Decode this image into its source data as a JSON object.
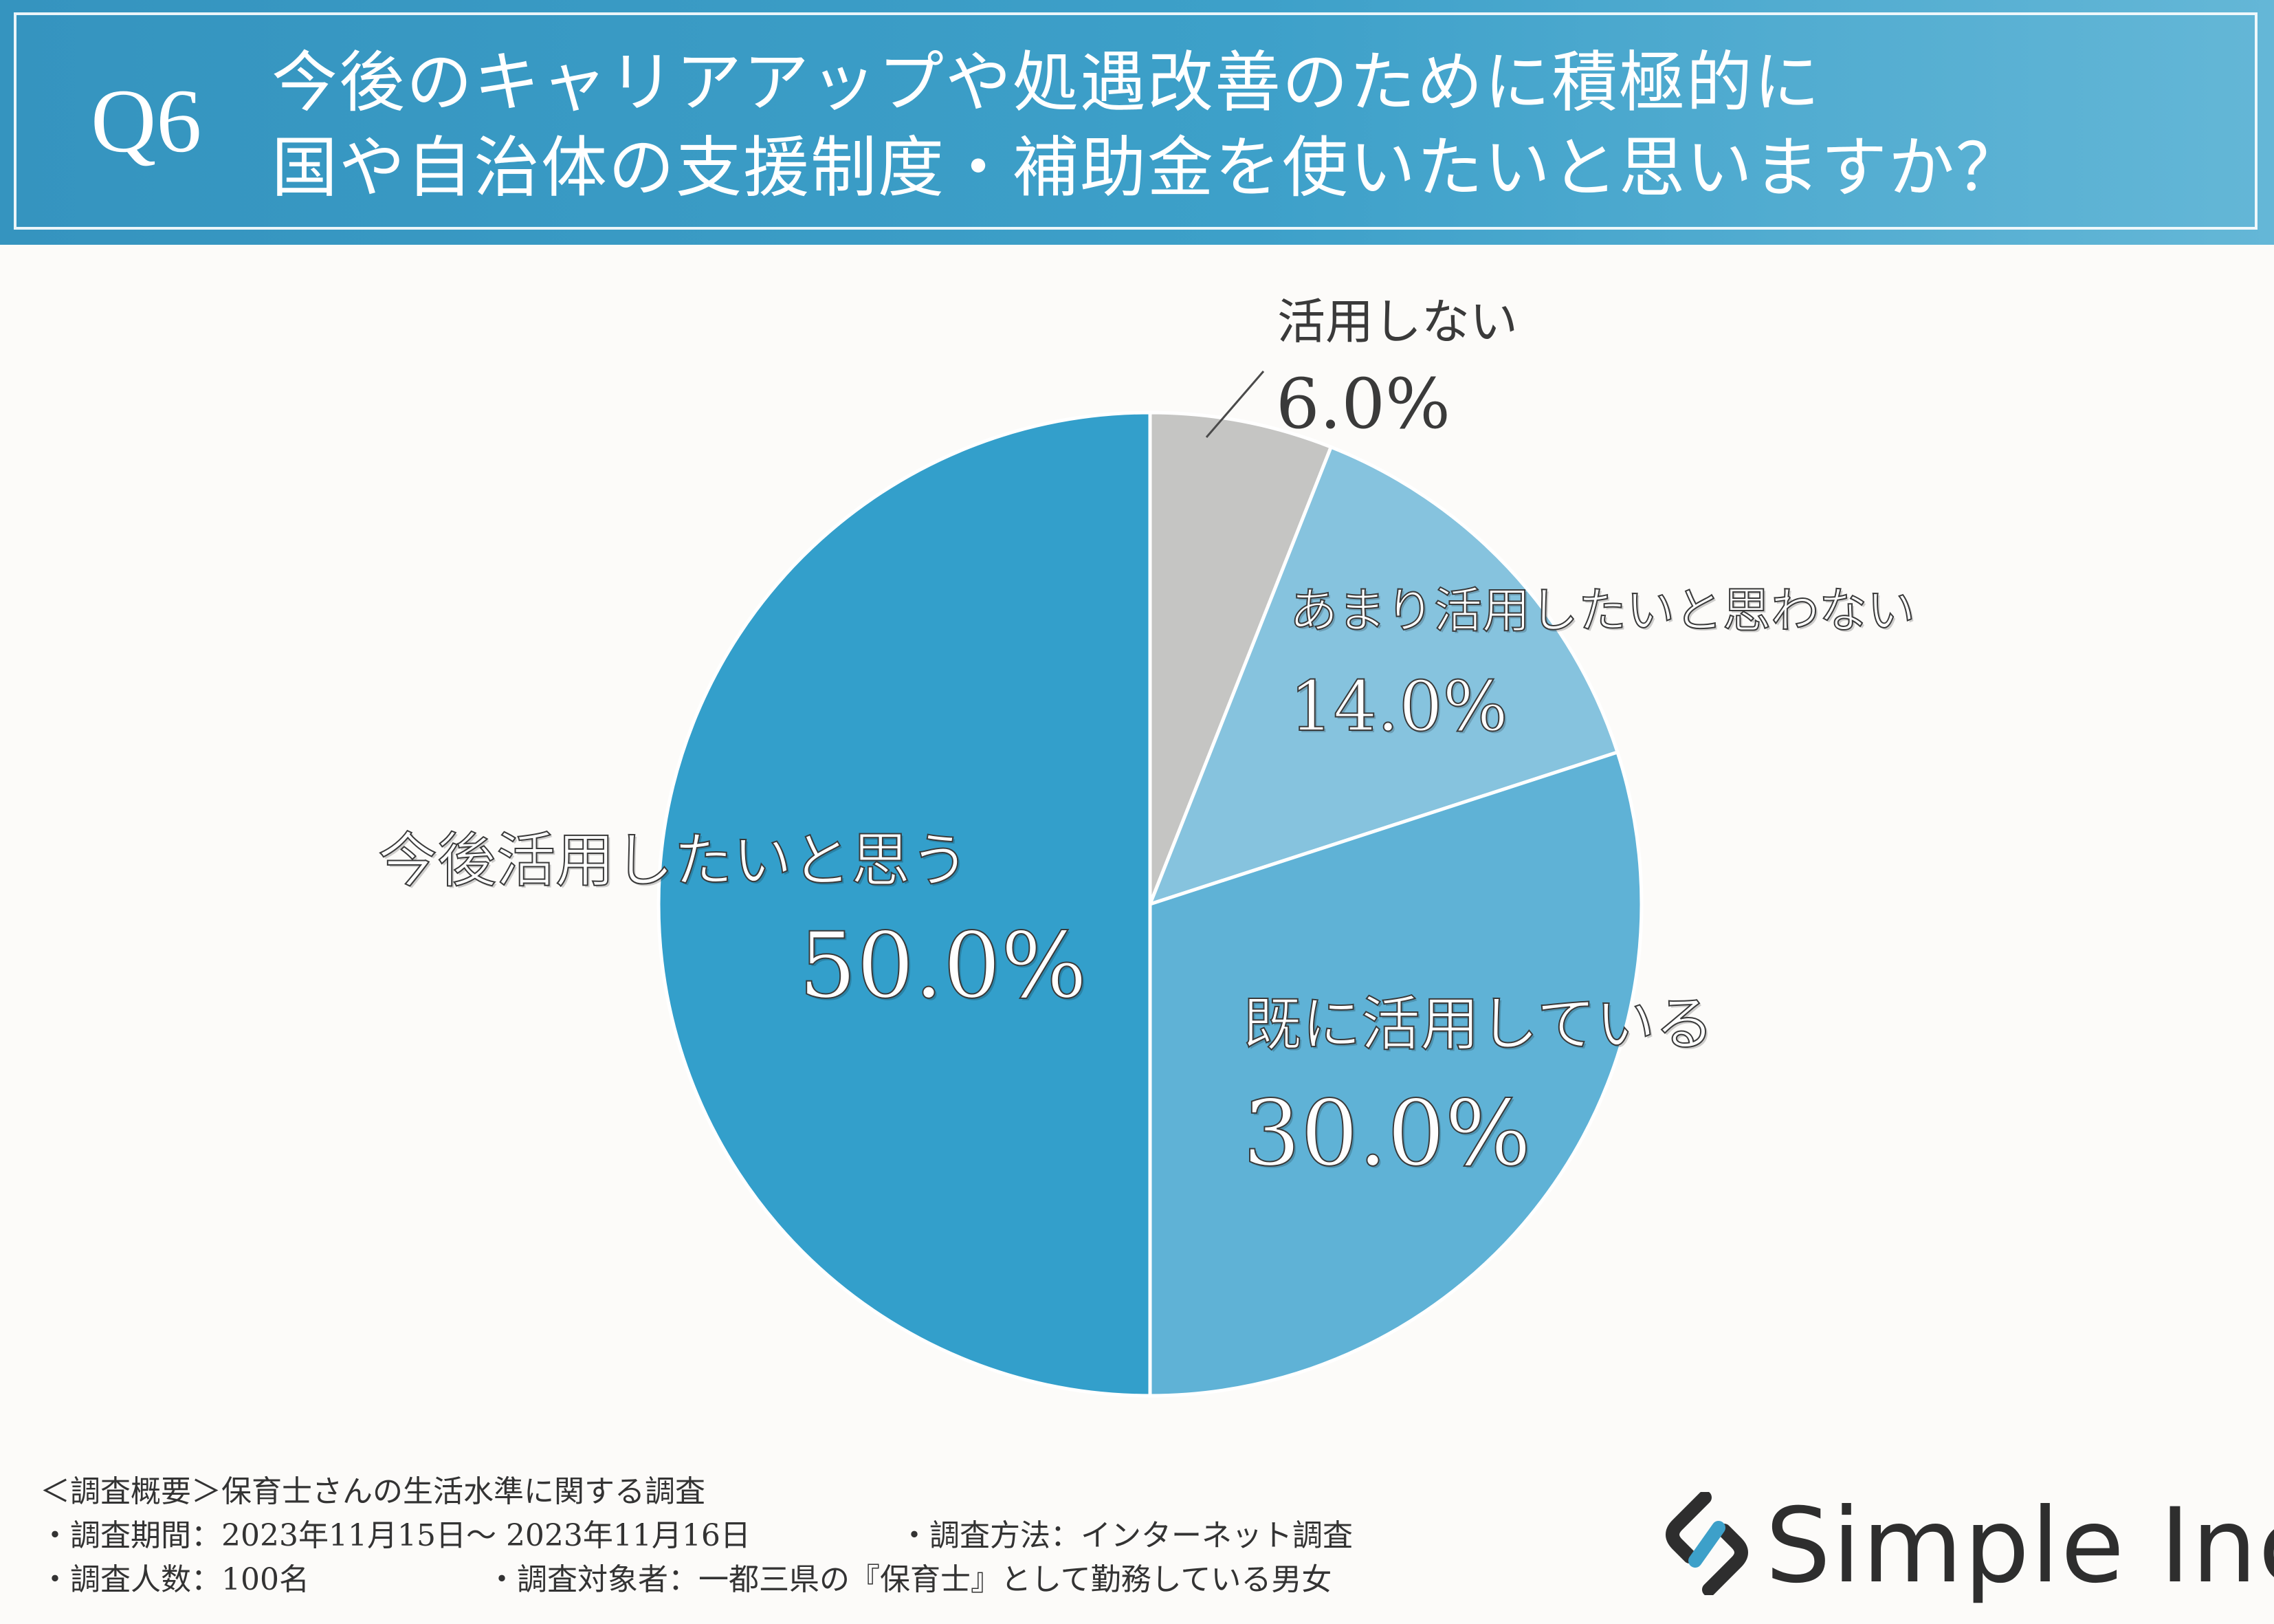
{
  "header": {
    "q_label": "Q6",
    "title_line1": "今後のキャリアアップや処遇改善のために積極的に",
    "title_line2": "国や自治体の支援制度・補助金を使いたいと思いますか？"
  },
  "colors": {
    "header_bg": "#3594bf",
    "slice_colors": [
      "#c5c5c3",
      "#86c3de",
      "#5fb2d6",
      "#339fcb"
    ]
  },
  "chart_data": {
    "type": "pie",
    "title": "今後のキャリアアップや処遇改善のために積極的に国や自治体の支援制度・補助金を使いたいと思いますか？",
    "start_angle_deg": 0,
    "direction": "clockwise",
    "slices": [
      {
        "label": "活用しない",
        "value": 6.0,
        "pct_label": "6.0%"
      },
      {
        "label": "あまり活用したいと思わない",
        "value": 14.0,
        "pct_label": "14.0%"
      },
      {
        "label": "既に活用している",
        "value": 30.0,
        "pct_label": "30.0%"
      },
      {
        "label": "今後活用したいと思う",
        "value": 50.0,
        "pct_label": "50.0%"
      }
    ]
  },
  "footer": {
    "summary_title": "＜調査概要＞保育士さんの生活水準に関する調査",
    "period": "・調査期間：2023年11月15日～ 2023年11月16日",
    "method": "・調査方法：インターネット調査",
    "count": "・調査人数：100名",
    "target": "・調査対象者：一都三県の『保育士』として勤務している男女"
  },
  "logo": {
    "text": "Simple Inc.",
    "icon": "simple-inc-logo-icon"
  }
}
